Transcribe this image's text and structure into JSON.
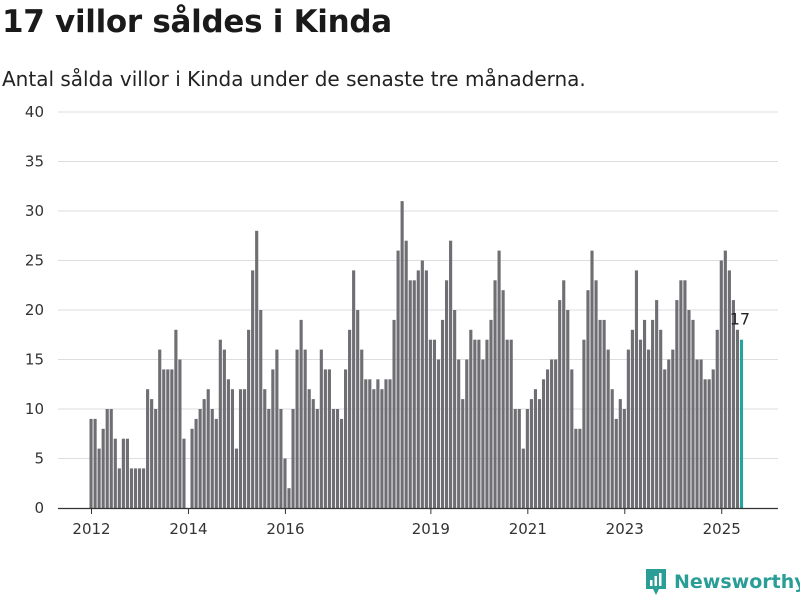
{
  "title": "17 villor såldes i Kinda",
  "subtitle": "Antal sålda villor i Kinda under de senaste tre månaderna.",
  "brand": "Newsworthy",
  "colors": {
    "bar": "#6f6e73",
    "highlight": "#26a39a",
    "grid": "#dddddd",
    "axis": "#333333",
    "brand": "#2a9d96"
  },
  "chart_data": {
    "type": "bar",
    "title": "17 villor såldes i Kinda",
    "subtitle": "Antal sålda villor i Kinda under de senaste tre månaderna.",
    "xlabel": "",
    "ylabel": "",
    "ylim": [
      0,
      40
    ],
    "yticks": [
      0,
      5,
      10,
      15,
      20,
      25,
      30,
      35,
      40
    ],
    "xticks": [
      "2012",
      "2014",
      "2016",
      "2019",
      "2021",
      "2023",
      "2025"
    ],
    "grid": true,
    "start": "2012-01",
    "frequency": "monthly",
    "values": [
      9,
      9,
      6,
      8,
      10,
      10,
      7,
      4,
      7,
      7,
      4,
      4,
      4,
      4,
      12,
      11,
      10,
      16,
      14,
      14,
      14,
      18,
      15,
      7,
      0,
      8,
      9,
      10,
      11,
      12,
      10,
      9,
      17,
      16,
      13,
      12,
      6,
      12,
      12,
      18,
      24,
      28,
      20,
      12,
      10,
      14,
      16,
      10,
      5,
      2,
      10,
      16,
      19,
      16,
      12,
      11,
      10,
      16,
      14,
      14,
      10,
      10,
      9,
      14,
      18,
      24,
      20,
      16,
      13,
      13,
      12,
      13,
      12,
      13,
      13,
      19,
      26,
      31,
      27,
      23,
      23,
      24,
      25,
      24,
      17,
      17,
      15,
      19,
      23,
      27,
      20,
      15,
      11,
      15,
      18,
      17,
      17,
      15,
      17,
      19,
      23,
      26,
      22,
      17,
      17,
      10,
      10,
      6,
      10,
      11,
      12,
      11,
      13,
      14,
      15,
      15,
      21,
      23,
      20,
      14,
      8,
      8,
      17,
      22,
      26,
      23,
      19,
      19,
      16,
      12,
      9,
      11,
      10,
      16,
      18,
      24,
      17,
      19,
      16,
      19,
      21,
      18,
      14,
      15,
      16,
      21,
      23,
      23,
      20,
      19,
      15,
      15,
      13,
      13,
      14,
      18,
      25,
      26,
      24,
      21,
      18,
      17
    ],
    "highlight_last": true,
    "last_value_label": "17"
  }
}
